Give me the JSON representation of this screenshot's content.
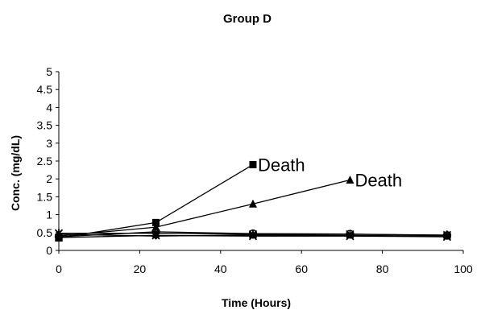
{
  "chart_data": {
    "type": "line",
    "title": "Group D",
    "xlabel": "Time (Hours)",
    "ylabel": "Conc. (mg/dL)",
    "xlim": [
      0,
      100
    ],
    "ylim": [
      0,
      5
    ],
    "x_ticks": [
      "0",
      "20",
      "40",
      "60",
      "80",
      "100"
    ],
    "y_ticks": [
      "0",
      "0.5",
      "1",
      "1.5",
      "2",
      "2.5",
      "3",
      "3.5",
      "4",
      "4.5",
      "5"
    ],
    "grid": false,
    "legend": "none",
    "series": [
      {
        "marker": "square",
        "points": [
          [
            0,
            0.35
          ],
          [
            24,
            0.78
          ],
          [
            48,
            2.4
          ]
        ]
      },
      {
        "marker": "triangle",
        "points": [
          [
            0,
            0.4
          ],
          [
            24,
            0.65
          ],
          [
            48,
            1.3
          ],
          [
            72,
            1.97
          ]
        ]
      },
      {
        "marker": "diamond",
        "points": [
          [
            0,
            0.45
          ],
          [
            24,
            0.4
          ],
          [
            48,
            0.43
          ],
          [
            72,
            0.42
          ],
          [
            96,
            0.4
          ]
        ]
      },
      {
        "marker": "circle",
        "points": [
          [
            0,
            0.38
          ],
          [
            24,
            0.52
          ],
          [
            48,
            0.47
          ],
          [
            72,
            0.46
          ],
          [
            96,
            0.42
          ]
        ]
      },
      {
        "marker": "x",
        "points": [
          [
            0,
            0.36
          ],
          [
            24,
            0.42
          ],
          [
            48,
            0.4
          ],
          [
            72,
            0.4
          ],
          [
            96,
            0.38
          ]
        ]
      },
      {
        "marker": "star",
        "points": [
          [
            0,
            0.48
          ],
          [
            24,
            0.48
          ],
          [
            48,
            0.45
          ],
          [
            72,
            0.45
          ],
          [
            96,
            0.43
          ]
        ]
      }
    ],
    "annotations": [
      {
        "text": "Death",
        "x": 48,
        "y": 2.4
      },
      {
        "text": "Death",
        "x": 72,
        "y": 1.97
      }
    ]
  }
}
